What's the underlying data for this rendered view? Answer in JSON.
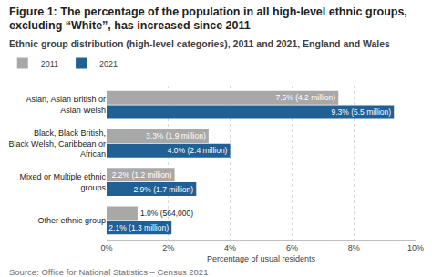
{
  "chart_data": {
    "type": "bar",
    "title": "Figure 1: The percentage of the population in all high-level ethnic groups, excluding “White”, has increased since 2011",
    "subtitle": "Ethnic group distribution (high-level categories), 2011 and 2021, England and Wales",
    "annotations": [
      "Source: Office for National Statistics – Census 2021"
    ],
    "xlabel": "Percentage of usual residents",
    "orientation": "horizontal",
    "categories": [
      "Asian, Asian British or Asian Welsh",
      "Black, Black British, Black Welsh, Caribbean or African",
      "Mixed or Multiple ethnic groups",
      "Other ethnic group"
    ],
    "series": [
      {
        "name": "2011",
        "color": "#a8a8a8",
        "values": [
          7.5,
          3.3,
          2.2,
          1.0
        ],
        "value_labels": [
          "7.5% (4.2 million)",
          "3.3% (1.9 million)",
          "2.2% (1.2 million)",
          "1.0% (564,000)"
        ]
      },
      {
        "name": "2021",
        "color": "#206095",
        "values": [
          9.3,
          4.0,
          2.9,
          2.1
        ],
        "value_labels": [
          "9.3% (5.5 million)",
          "4.0% (2.4 million)",
          "2.9% (1.7 million)",
          "2.1% (1.3 million)"
        ]
      }
    ],
    "data_labels": true,
    "legend": "top left",
    "grid": true,
    "xlim": [
      0,
      10
    ],
    "xticks": [
      {
        "value": 0,
        "label": "0%"
      },
      {
        "value": 2,
        "label": "2%"
      },
      {
        "value": 4,
        "label": "4%"
      },
      {
        "value": 6,
        "label": "6%"
      },
      {
        "value": 8,
        "label": "8%"
      },
      {
        "value": 10,
        "label": "10%"
      }
    ]
  }
}
